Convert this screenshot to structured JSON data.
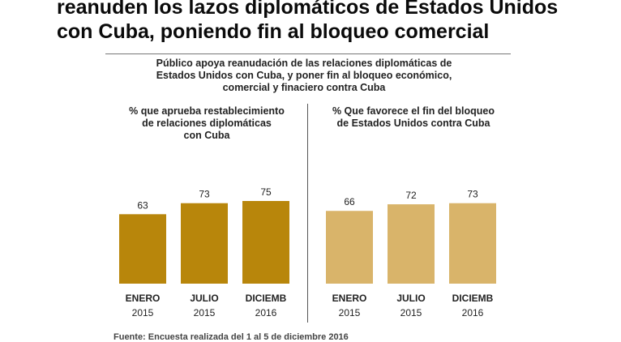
{
  "headline": {
    "line1": "reanuden los lazos diplomáticos de Estados Unidos",
    "line2": "con Cuba, poniendo fin al bloqueo comercial"
  },
  "subtitle": {
    "line1": "Público apoya reanudación de las relaciones diplomáticas de",
    "line2": "Estados Unidos con Cuba, y poner fin al bloqueo económico,",
    "line3": "comercial y finaciero contra Cuba"
  },
  "footer": "Fuente: Encuesta realizada del 1 al 5 de diciembre 2016",
  "colors": {
    "left_bar": "#b8860b",
    "right_bar": "#d9b46a",
    "text": "#222222"
  },
  "chart_data": [
    {
      "type": "bar",
      "title_lines": [
        "% que aprueba restablecimiento",
        "de relaciones diplomáticas",
        "con Cuba"
      ],
      "categories": [
        {
          "month": "ENERO",
          "year": "2015"
        },
        {
          "month": "JULIO",
          "year": "2015"
        },
        {
          "month": "DICIEMB",
          "year": "2016"
        }
      ],
      "values": [
        63,
        73,
        75
      ],
      "ylim": [
        0,
        100
      ],
      "grid": false,
      "color": "#b8860b"
    },
    {
      "type": "bar",
      "title_lines": [
        "% Que favorece el fin del bloqueo",
        "de Estados Unidos contra Cuba"
      ],
      "categories": [
        {
          "month": "ENERO",
          "year": "2015"
        },
        {
          "month": "JULIO",
          "year": "2015"
        },
        {
          "month": "DICIEMB",
          "year": "2016"
        }
      ],
      "values": [
        66,
        72,
        73
      ],
      "ylim": [
        0,
        100
      ],
      "grid": false,
      "color": "#d9b46a"
    }
  ]
}
